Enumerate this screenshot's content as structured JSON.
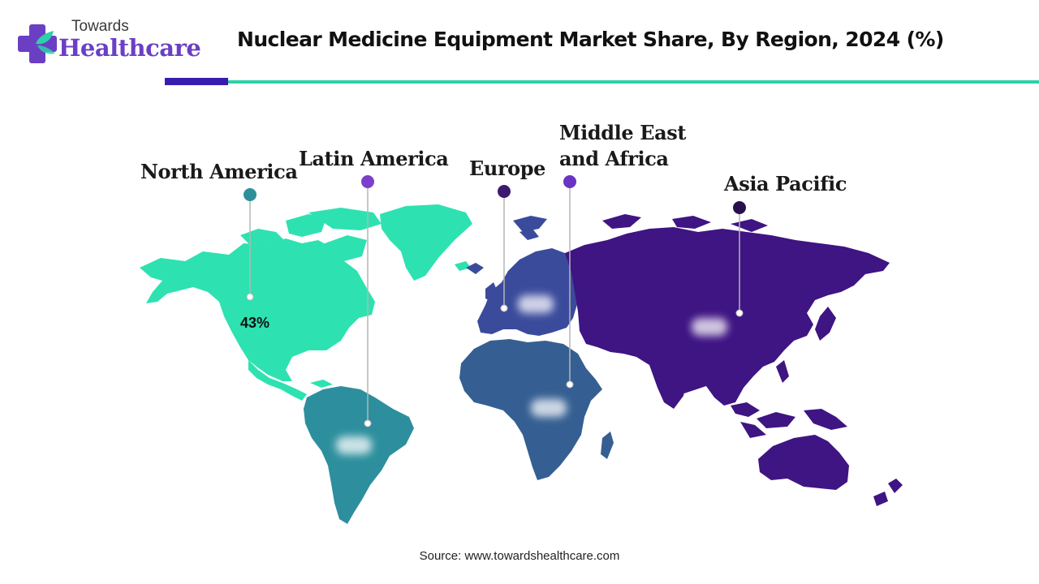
{
  "brand": {
    "line1": "Towards",
    "line2": "Healthcare",
    "colors": {
      "purple": "#6a3fc4",
      "teal": "#2fd0a8",
      "dark": "#3a1bb0"
    }
  },
  "title": "Nuclear Medicine Equipment Market Share, By Region, 2024 (%)",
  "regions": [
    {
      "id": "north-america",
      "name": "North America",
      "value": "43%",
      "color": "#2de2b0",
      "marker_color": "#2e8f9a"
    },
    {
      "id": "latin-america",
      "name": "Latin America",
      "value": "",
      "color": "#2d8f9d",
      "marker_color": "#7b3fc9"
    },
    {
      "id": "europe",
      "name": "Europe",
      "value": "",
      "color": "#3b4b9c",
      "marker_color": "#3d1a6e"
    },
    {
      "id": "middle-east-africa",
      "name": "Middle East and Africa",
      "name_line1": "Middle East",
      "name_line2": "and Africa",
      "value": "",
      "color": "#355f92",
      "marker_color": "#6a34c2"
    },
    {
      "id": "asia-pacific",
      "name": "Asia Pacific",
      "value": "",
      "color": "#3f1483",
      "marker_color": "#2a0f4f"
    }
  ],
  "source": "Source: www.towardshealthcare.com"
}
